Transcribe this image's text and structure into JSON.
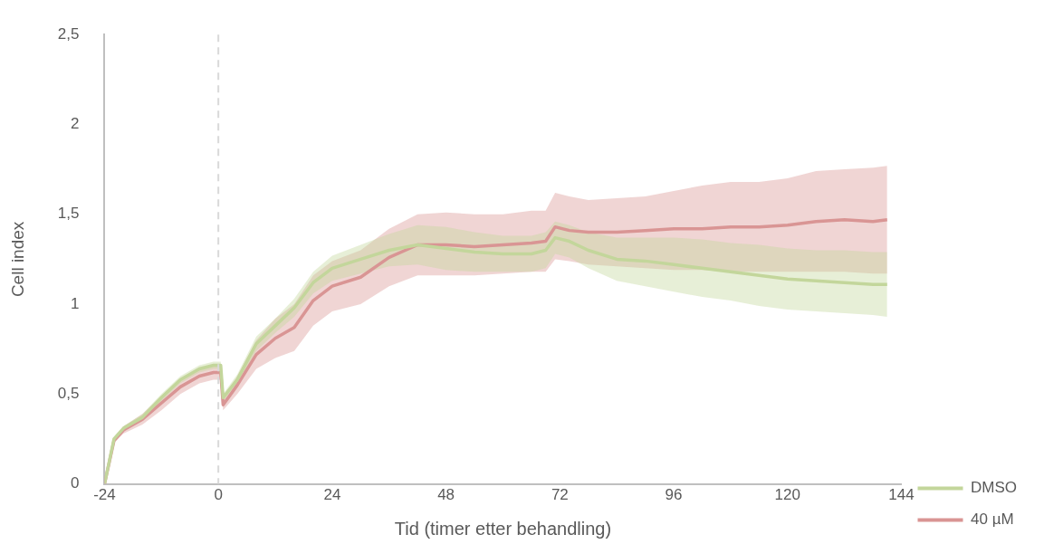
{
  "chart_data": {
    "type": "line",
    "xlabel": "Tid (timer etter behandling)",
    "ylabel": "Cell index",
    "x": [
      -24,
      -22,
      -20,
      -16,
      -12,
      -8,
      -4,
      -1,
      0.5,
      1,
      4,
      8,
      12,
      16,
      20,
      24,
      30,
      36,
      42,
      48,
      54,
      60,
      66,
      69,
      71,
      74,
      78,
      84,
      90,
      96,
      102,
      108,
      114,
      120,
      126,
      132,
      138,
      141
    ],
    "series": [
      {
        "name": "DMSO",
        "color": "#c3d69b",
        "values": [
          0,
          0.25,
          0.31,
          0.37,
          0.48,
          0.58,
          0.64,
          0.66,
          0.66,
          0.48,
          0.58,
          0.78,
          0.88,
          0.98,
          1.12,
          1.2,
          1.25,
          1.3,
          1.33,
          1.31,
          1.29,
          1.28,
          1.28,
          1.3,
          1.37,
          1.35,
          1.3,
          1.25,
          1.24,
          1.22,
          1.2,
          1.18,
          1.16,
          1.14,
          1.13,
          1.12,
          1.11,
          1.11
        ],
        "lower": [
          0,
          0.24,
          0.3,
          0.35,
          0.46,
          0.56,
          0.62,
          0.64,
          0.64,
          0.46,
          0.55,
          0.74,
          0.84,
          0.93,
          1.06,
          1.13,
          1.17,
          1.21,
          1.22,
          1.19,
          1.18,
          1.18,
          1.18,
          1.2,
          1.28,
          1.26,
          1.2,
          1.13,
          1.1,
          1.07,
          1.04,
          1.02,
          0.99,
          0.97,
          0.96,
          0.95,
          0.94,
          0.93
        ],
        "upper": [
          0,
          0.26,
          0.32,
          0.39,
          0.5,
          0.6,
          0.66,
          0.68,
          0.68,
          0.5,
          0.61,
          0.82,
          0.92,
          1.03,
          1.18,
          1.27,
          1.33,
          1.39,
          1.44,
          1.43,
          1.4,
          1.38,
          1.38,
          1.4,
          1.46,
          1.44,
          1.4,
          1.37,
          1.37,
          1.37,
          1.36,
          1.34,
          1.33,
          1.31,
          1.3,
          1.3,
          1.29,
          1.29
        ]
      },
      {
        "name": "40 µM",
        "color": "#d99594",
        "values": [
          0,
          0.24,
          0.3,
          0.36,
          0.45,
          0.54,
          0.6,
          0.62,
          0.62,
          0.44,
          0.55,
          0.72,
          0.81,
          0.87,
          1.02,
          1.1,
          1.15,
          1.26,
          1.33,
          1.33,
          1.32,
          1.33,
          1.34,
          1.35,
          1.43,
          1.41,
          1.4,
          1.4,
          1.41,
          1.42,
          1.42,
          1.43,
          1.43,
          1.44,
          1.46,
          1.47,
          1.46,
          1.47
        ],
        "lower": [
          0,
          0.23,
          0.28,
          0.33,
          0.41,
          0.5,
          0.56,
          0.58,
          0.58,
          0.41,
          0.5,
          0.64,
          0.7,
          0.74,
          0.88,
          0.96,
          1.0,
          1.1,
          1.16,
          1.16,
          1.16,
          1.17,
          1.18,
          1.18,
          1.25,
          1.24,
          1.22,
          1.21,
          1.2,
          1.19,
          1.19,
          1.18,
          1.18,
          1.18,
          1.18,
          1.18,
          1.17,
          1.17
        ],
        "upper": [
          0,
          0.25,
          0.32,
          0.39,
          0.49,
          0.58,
          0.64,
          0.66,
          0.66,
          0.47,
          0.6,
          0.8,
          0.92,
          1.0,
          1.16,
          1.24,
          1.3,
          1.42,
          1.5,
          1.51,
          1.5,
          1.5,
          1.52,
          1.52,
          1.62,
          1.6,
          1.58,
          1.59,
          1.6,
          1.63,
          1.66,
          1.68,
          1.68,
          1.7,
          1.74,
          1.75,
          1.76,
          1.77
        ]
      }
    ],
    "xlim": [
      -24,
      144
    ],
    "xticks": [
      -24,
      0,
      24,
      48,
      72,
      96,
      120,
      144
    ],
    "ylim": [
      0,
      2.5
    ],
    "yticks": [
      0,
      {
        "value": 0.5,
        "label": "0,5"
      },
      1,
      {
        "value": 1.5,
        "label": "1,5"
      },
      2,
      {
        "value": 2.5,
        "label": "2,5"
      }
    ],
    "ref_lines": [
      {
        "axis": "x",
        "value": 0,
        "label": null,
        "color": "#d9d9d9",
        "line_style": "dashed"
      }
    ],
    "grid": false,
    "legend": "right",
    "marker": "none",
    "line_style": "solid"
  }
}
